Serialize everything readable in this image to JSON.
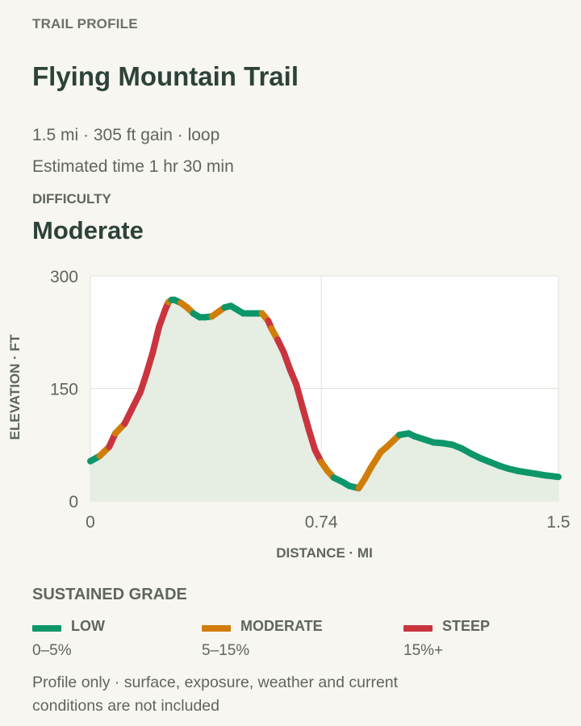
{
  "header": {
    "eyebrow": "TRAIL PROFILE",
    "title": "Flying Mountain Trail",
    "stats": "1.5 mi · 305 ft gain · loop",
    "time": "Estimated time 1 hr 30 min",
    "difficulty_label": "DIFFICULTY",
    "difficulty_value": "Moderate"
  },
  "chart_data": {
    "type": "line",
    "title": "",
    "xlabel": "DISTANCE · MI",
    "ylabel": "ELEVATION · FT",
    "xlim": [
      0,
      1.5
    ],
    "ylim": [
      0,
      300
    ],
    "x_ticks": [
      "0",
      "0.74",
      "1.5"
    ],
    "y_ticks": [
      "0",
      "150",
      "300"
    ],
    "grid": true,
    "area_fill": true,
    "series": [
      {
        "x": [
          0,
          0.03,
          0.06,
          0.08,
          0.11,
          0.13,
          0.16,
          0.18,
          0.2,
          0.22,
          0.24,
          0.25,
          0.26,
          0.27,
          0.29,
          0.31,
          0.33,
          0.35,
          0.37,
          0.39,
          0.41,
          0.43,
          0.45,
          0.47,
          0.49,
          0.51,
          0.53,
          0.55,
          0.57,
          0.58,
          0.6,
          0.62,
          0.64,
          0.66,
          0.68,
          0.7,
          0.72,
          0.74,
          0.76,
          0.78,
          0.81,
          0.83,
          0.86,
          0.88,
          0.9,
          0.92,
          0.93,
          0.95,
          0.97,
          0.99,
          1.02,
          1.04,
          1.07,
          1.1,
          1.13,
          1.16,
          1.19,
          1.22,
          1.25,
          1.28,
          1.31,
          1.34,
          1.37,
          1.4,
          1.43,
          1.46,
          1.5
        ],
        "y": [
          53,
          60,
          72,
          90,
          103,
          120,
          145,
          170,
          198,
          232,
          255,
          265,
          268,
          268,
          264,
          258,
          250,
          245,
          245,
          246,
          252,
          258,
          260,
          255,
          250,
          250,
          250,
          250,
          240,
          230,
          215,
          198,
          175,
          155,
          125,
          95,
          68,
          52,
          40,
          31,
          25,
          20,
          17,
          30,
          45,
          58,
          65,
          72,
          80,
          88,
          90,
          86,
          82,
          78,
          77,
          75,
          70,
          63,
          57,
          52,
          47,
          43,
          40,
          38,
          36,
          34,
          32
        ]
      }
    ],
    "grade_legend": [
      {
        "name": "LOW",
        "range": "0–5%",
        "color": "#0c9669",
        "max_grade": 5
      },
      {
        "name": "MODERATE",
        "range": "5–15%",
        "color": "#d17d0a",
        "max_grade": 15
      },
      {
        "name": "STEEP",
        "range": "15%+",
        "color": "#c9353f",
        "max_grade": 1000
      }
    ],
    "area_color": "#e6ede3",
    "grid_color": "#e2e2dc",
    "plot_bg": "#ffffff"
  },
  "legend": {
    "title": "SUSTAINED GRADE"
  },
  "footnote": "Profile only · surface, exposure, weather and current conditions are not included"
}
